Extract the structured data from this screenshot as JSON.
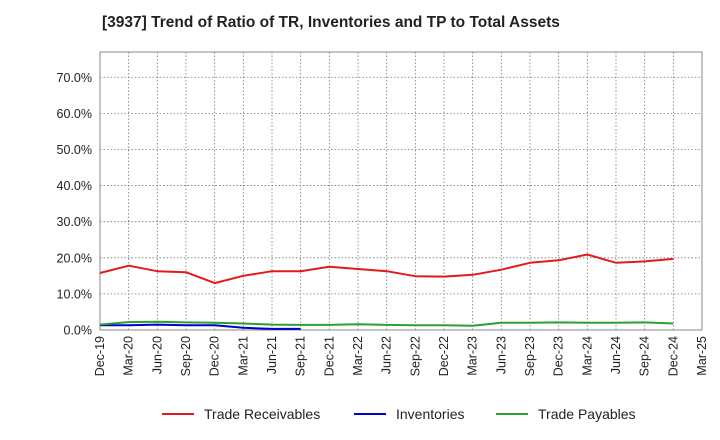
{
  "chart_data": {
    "type": "line",
    "title": "[3937]  Trend of Ratio of TR, Inventories and TP to Total Assets",
    "xlabel": "",
    "ylabel": "",
    "x": [
      "Dec-19",
      "Mar-20",
      "Jun-20",
      "Sep-20",
      "Dec-20",
      "Mar-21",
      "Jun-21",
      "Sep-21",
      "Dec-21",
      "Mar-22",
      "Jun-22",
      "Sep-22",
      "Dec-22",
      "Mar-23",
      "Jun-23",
      "Sep-23",
      "Dec-23",
      "Mar-24",
      "Jun-24",
      "Sep-24",
      "Dec-24",
      "Mar-25"
    ],
    "ylim": [
      0,
      77
    ],
    "yticks": [
      0,
      10,
      20,
      30,
      40,
      50,
      60,
      70
    ],
    "ytick_labels": [
      "0.0%",
      "10.0%",
      "20.0%",
      "30.0%",
      "40.0%",
      "50.0%",
      "60.0%",
      "70.0%"
    ],
    "grid": true,
    "legend_position": "bottom",
    "series": [
      {
        "name": "Trade Receivables",
        "color": "#e31a1c",
        "values": [
          15.8,
          17.8,
          16.3,
          16.0,
          13.0,
          15.0,
          16.3,
          16.3,
          17.5,
          16.9,
          16.3,
          14.9,
          14.8,
          15.3,
          16.7,
          18.6,
          19.3,
          20.9,
          18.6,
          19.0,
          19.7,
          null
        ]
      },
      {
        "name": "Inventories",
        "color": "#0000cc",
        "values": [
          1.3,
          1.3,
          1.5,
          1.3,
          1.3,
          0.6,
          0.3,
          0.3,
          null,
          null,
          null,
          null,
          null,
          null,
          null,
          null,
          null,
          null,
          null,
          null,
          null,
          null
        ]
      },
      {
        "name": "Trade Payables",
        "color": "#2ca02c",
        "values": [
          1.5,
          2.2,
          2.3,
          2.1,
          2.0,
          1.8,
          1.5,
          1.4,
          1.4,
          1.6,
          1.4,
          1.3,
          1.3,
          1.2,
          2.0,
          2.0,
          2.1,
          2.0,
          2.0,
          2.1,
          1.8,
          null
        ]
      }
    ]
  }
}
